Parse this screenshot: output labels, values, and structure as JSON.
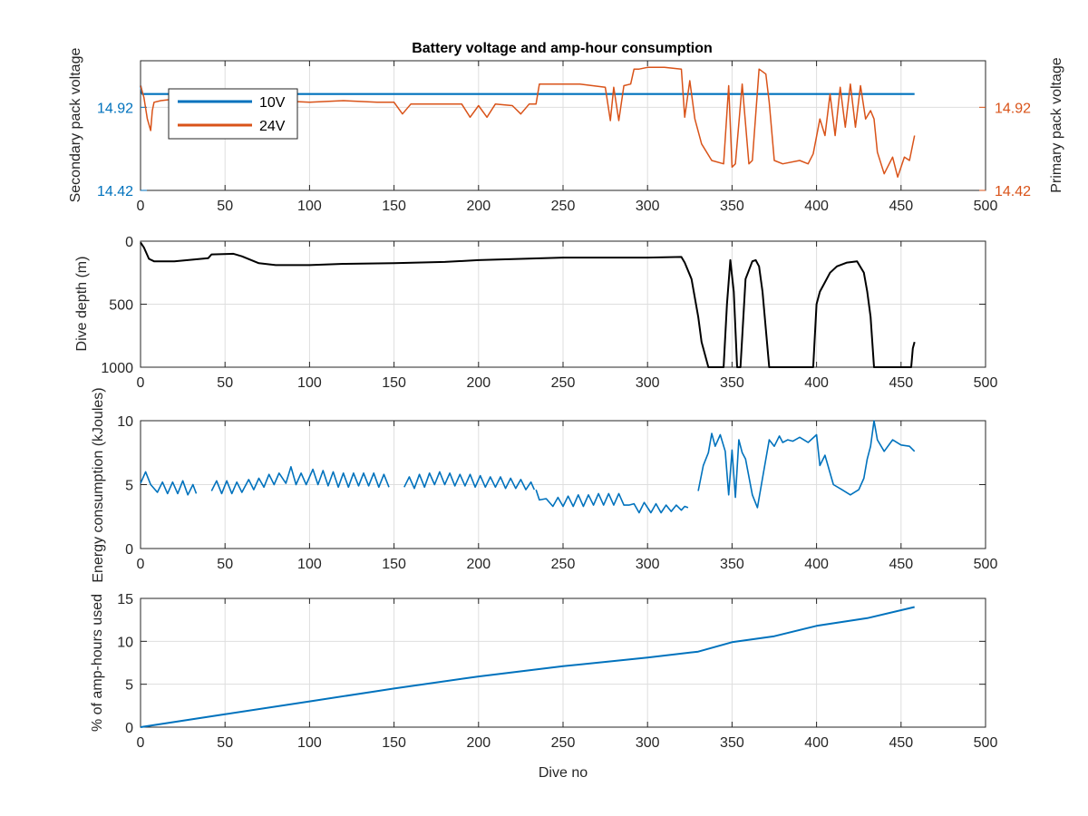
{
  "chart_data": [
    {
      "type": "line",
      "title": "Battery voltage and amp-hour consumption",
      "xlabel": "",
      "ylabel_left": "Secondary pack voltage",
      "ylabel_right": "Primary pack voltage",
      "xlim": [
        0,
        500
      ],
      "ylim_left": [
        14.42,
        15.2
      ],
      "ylim_right": [
        14.42,
        15.2
      ],
      "x_ticks": [
        "0",
        "50",
        "100",
        "150",
        "200",
        "250",
        "300",
        "350",
        "400",
        "450",
        "500"
      ],
      "y_ticks_left": [
        "14.42",
        "14.92"
      ],
      "y_ticks_right": [
        "14.42",
        "14.92"
      ],
      "grid": true,
      "legend_position": "top-left",
      "left_axis_color": "#0072BD",
      "right_axis_color": "#D95319",
      "series": [
        {
          "name": "10V",
          "axis": "left",
          "color": "#0072BD",
          "x": [
            0,
            1,
            458
          ],
          "y": [
            15.05,
            15.0,
            15.0
          ]
        },
        {
          "name": "24V",
          "axis": "right",
          "color": "#D95319",
          "x": [
            0,
            2,
            4,
            6,
            7,
            8,
            12,
            20,
            40,
            60,
            80,
            100,
            120,
            140,
            150,
            155,
            160,
            190,
            195,
            200,
            205,
            210,
            220,
            225,
            230,
            234,
            236,
            260,
            275,
            278,
            280,
            283,
            286,
            290,
            292,
            295,
            300,
            310,
            320,
            322,
            325,
            328,
            332,
            338,
            345,
            348,
            350,
            352,
            356,
            360,
            362,
            366,
            370,
            372,
            375,
            380,
            390,
            395,
            398,
            402,
            405,
            408,
            411,
            414,
            417,
            420,
            423,
            426,
            429,
            432,
            434,
            436,
            440,
            445,
            448,
            452,
            455,
            458
          ],
          "y": [
            15.05,
            14.98,
            14.85,
            14.78,
            14.9,
            14.95,
            14.96,
            14.97,
            14.96,
            14.97,
            14.96,
            14.95,
            14.96,
            14.95,
            14.95,
            14.88,
            14.94,
            14.94,
            14.86,
            14.93,
            14.86,
            14.94,
            14.93,
            14.88,
            14.94,
            14.94,
            15.06,
            15.06,
            15.04,
            14.84,
            15.04,
            14.84,
            15.05,
            15.06,
            15.15,
            15.15,
            15.16,
            15.16,
            15.15,
            14.86,
            15.08,
            14.85,
            14.7,
            14.6,
            14.58,
            15.05,
            14.56,
            14.58,
            15.06,
            14.58,
            14.6,
            15.15,
            15.12,
            14.95,
            14.6,
            14.58,
            14.6,
            14.58,
            14.64,
            14.85,
            14.75,
            15.0,
            14.75,
            15.04,
            14.8,
            15.06,
            14.8,
            15.05,
            14.85,
            14.9,
            14.85,
            14.65,
            14.52,
            14.62,
            14.5,
            14.62,
            14.6,
            14.75
          ]
        }
      ]
    },
    {
      "type": "line",
      "title": "",
      "xlabel": "",
      "ylabel": "Dive depth (m)",
      "xlim": [
        0,
        500
      ],
      "ylim": [
        1000,
        0
      ],
      "y_reversed": true,
      "x_ticks": [
        "0",
        "50",
        "100",
        "150",
        "200",
        "250",
        "300",
        "350",
        "400",
        "450",
        "500"
      ],
      "y_ticks": [
        "0",
        "500",
        "1000"
      ],
      "grid": true,
      "series": [
        {
          "color": "#000000",
          "x": [
            0,
            2,
            5,
            8,
            20,
            40,
            42,
            55,
            60,
            70,
            80,
            100,
            120,
            150,
            180,
            200,
            250,
            300,
            320,
            322,
            326,
            330,
            332,
            336,
            340,
            345,
            347,
            349,
            351,
            353,
            355,
            358,
            362,
            364,
            366,
            368,
            370,
            372,
            375,
            380,
            390,
            398,
            400,
            402,
            404,
            408,
            412,
            418,
            424,
            428,
            430,
            432,
            434,
            436,
            440,
            445,
            450,
            456,
            457,
            458
          ],
          "y": [
            10,
            50,
            140,
            160,
            160,
            135,
            105,
            100,
            120,
            175,
            190,
            190,
            180,
            175,
            165,
            150,
            130,
            130,
            125,
            170,
            300,
            600,
            800,
            1000,
            1000,
            1000,
            500,
            150,
            400,
            1000,
            1000,
            300,
            160,
            150,
            200,
            400,
            700,
            1000,
            1000,
            1000,
            1000,
            1000,
            500,
            400,
            350,
            250,
            200,
            170,
            160,
            250,
            400,
            600,
            1000,
            1000,
            1000,
            1000,
            1000,
            1000,
            850,
            800
          ]
        }
      ]
    },
    {
      "type": "line",
      "title": "",
      "xlabel": "",
      "ylabel": "Energy consumption (kJoules)",
      "xlim": [
        0,
        500
      ],
      "ylim": [
        0,
        10
      ],
      "x_ticks": [
        "0",
        "50",
        "100",
        "150",
        "200",
        "250",
        "300",
        "350",
        "400",
        "450",
        "500"
      ],
      "y_ticks": [
        "0",
        "5",
        "10"
      ],
      "grid": true,
      "series": [
        {
          "color": "#0072BD",
          "segments": [
            {
              "x": [
                0,
                3,
                6,
                10,
                13,
                16,
                19,
                22,
                25,
                28,
                31,
                33
              ],
              "y": [
                5.1,
                6.0,
                5.0,
                4.4,
                5.2,
                4.3,
                5.2,
                4.3,
                5.3,
                4.2,
                5.0,
                4.3
              ]
            },
            {
              "x": [
                42,
                45,
                48,
                51,
                54,
                57,
                60,
                64,
                67,
                70,
                73,
                76,
                79,
                82,
                86,
                89,
                92,
                95,
                98,
                102,
                105,
                108,
                111,
                114,
                117,
                120,
                123,
                126,
                129,
                132,
                135,
                138,
                141,
                144,
                147
              ],
              "y": [
                4.5,
                5.3,
                4.3,
                5.3,
                4.3,
                5.2,
                4.4,
                5.4,
                4.6,
                5.5,
                4.8,
                5.8,
                5.0,
                5.9,
                5.1,
                6.4,
                5.0,
                5.9,
                5.0,
                6.2,
                5.0,
                6.1,
                4.9,
                6.0,
                4.8,
                5.9,
                4.8,
                5.9,
                4.9,
                5.9,
                4.9,
                5.9,
                4.8,
                5.8,
                4.8
              ]
            },
            {
              "x": [
                156,
                159,
                162,
                165,
                168,
                171,
                174,
                177,
                180,
                183,
                186,
                189,
                192,
                195,
                198,
                201,
                204,
                207,
                210,
                213,
                216,
                219,
                222,
                225,
                228,
                231,
                233
              ],
              "y": [
                4.8,
                5.6,
                4.7,
                5.8,
                4.8,
                5.9,
                5.0,
                6.0,
                5.0,
                5.9,
                4.9,
                5.8,
                4.9,
                5.8,
                4.8,
                5.7,
                4.8,
                5.6,
                4.8,
                5.6,
                4.7,
                5.5,
                4.7,
                5.4,
                4.6,
                5.2,
                4.6
              ]
            },
            {
              "x": [
                234,
                236,
                240,
                244,
                247,
                250,
                253,
                256,
                259,
                262,
                265,
                268,
                271,
                274,
                277,
                280,
                283,
                286,
                289,
                292,
                295,
                298,
                302,
                305,
                308,
                311,
                314,
                317,
                320,
                322,
                324
              ],
              "y": [
                4.6,
                3.8,
                3.9,
                3.3,
                4.0,
                3.3,
                4.1,
                3.3,
                4.2,
                3.3,
                4.2,
                3.4,
                4.3,
                3.4,
                4.3,
                3.4,
                4.3,
                3.4,
                3.4,
                3.5,
                2.8,
                3.6,
                2.8,
                3.5,
                2.8,
                3.4,
                2.9,
                3.4,
                3.0,
                3.3,
                3.2
              ]
            },
            {
              "x": [
                330,
                333,
                336,
                338,
                340,
                343,
                346,
                348,
                350,
                352,
                354,
                356,
                358,
                362,
                365,
                368,
                372,
                375,
                378,
                380,
                383,
                386,
                390,
                395,
                400,
                402,
                405,
                410,
                415,
                420,
                425,
                428,
                430,
                432,
                434,
                436,
                440,
                445,
                450,
                455,
                458
              ],
              "y": [
                4.5,
                6.5,
                7.5,
                9.0,
                8.0,
                8.9,
                7.6,
                4.2,
                7.7,
                4.0,
                8.5,
                7.5,
                7.0,
                4.2,
                3.2,
                5.5,
                8.5,
                8.0,
                8.8,
                8.3,
                8.5,
                8.4,
                8.7,
                8.3,
                8.9,
                6.5,
                7.3,
                5.0,
                4.6,
                4.2,
                4.6,
                5.5,
                7.0,
                8.0,
                10.0,
                8.5,
                7.6,
                8.5,
                8.1,
                8.0,
                7.6
              ]
            }
          ]
        }
      ]
    },
    {
      "type": "line",
      "title": "",
      "xlabel": "Dive no",
      "ylabel": "% of amp-hours used",
      "xlim": [
        0,
        500
      ],
      "ylim": [
        0,
        15
      ],
      "x_ticks": [
        "0",
        "50",
        "100",
        "150",
        "200",
        "250",
        "300",
        "350",
        "400",
        "450",
        "500"
      ],
      "y_ticks": [
        "0",
        "5",
        "10",
        "15"
      ],
      "grid": true,
      "series": [
        {
          "color": "#0072BD",
          "x": [
            0,
            50,
            100,
            150,
            200,
            250,
            300,
            330,
            350,
            375,
            400,
            430,
            458
          ],
          "y": [
            0,
            1.5,
            3.0,
            4.5,
            5.9,
            7.1,
            8.1,
            8.8,
            9.9,
            10.6,
            11.8,
            12.7,
            14.0
          ]
        }
      ]
    }
  ]
}
